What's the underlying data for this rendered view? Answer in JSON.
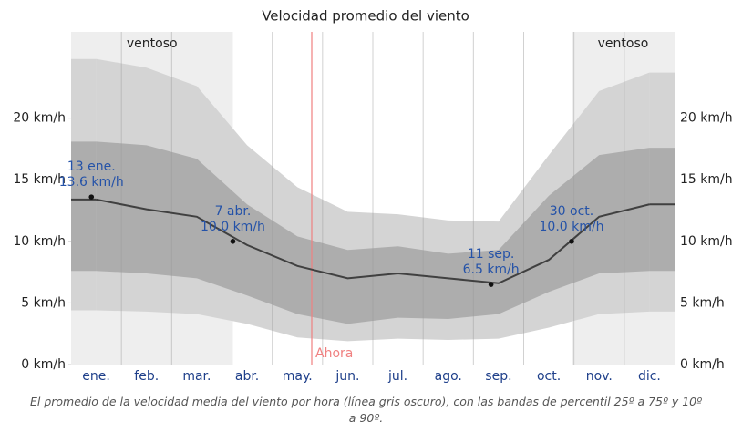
{
  "chart_data": {
    "type": "band-line",
    "title": "Velocidad promedio del viento",
    "categories": [
      "ene.",
      "feb.",
      "mar.",
      "abr.",
      "may.",
      "jun.",
      "jul.",
      "ago.",
      "sep.",
      "oct.",
      "nov.",
      "dic."
    ],
    "bands": [
      {
        "color": "#d4d4d4",
        "lower": [
          4.4,
          4.3,
          4.1,
          3.3,
          2.2,
          1.9,
          2.1,
          2.0,
          2.1,
          3.0,
          4.1,
          4.3
        ],
        "upper": [
          24.8,
          24.1,
          22.6,
          17.8,
          14.4,
          12.4,
          12.2,
          11.7,
          11.6,
          17.0,
          22.2,
          23.7
        ]
      },
      {
        "color": "#adadad",
        "lower": [
          7.6,
          7.4,
          7.0,
          5.6,
          4.1,
          3.3,
          3.8,
          3.7,
          4.1,
          5.9,
          7.4,
          7.6
        ],
        "upper": [
          18.1,
          17.8,
          16.7,
          13.0,
          10.4,
          9.3,
          9.6,
          9.0,
          9.3,
          13.7,
          17.0,
          17.6
        ]
      }
    ],
    "mean": {
      "color": "#404040",
      "values": [
        13.4,
        12.6,
        12.0,
        9.7,
        8.0,
        7.0,
        7.4,
        7.0,
        6.6,
        8.5,
        12.0,
        13.0
      ]
    },
    "annotations": [
      {
        "date": "13 ene.",
        "value": 13.6,
        "label": "13.6 km/h"
      },
      {
        "date": "7 abr.",
        "value": 10.0,
        "label": "10.0 km/h"
      },
      {
        "date": "11 sep.",
        "value": 6.5,
        "label": "6.5 km/h"
      },
      {
        "date": "30 oct.",
        "value": 10.0,
        "label": "10.0 km/h"
      }
    ],
    "windy_periods": [
      {
        "label": "ventoso"
      },
      {
        "label": "ventoso"
      }
    ],
    "now_label": "Ahora",
    "ylim": [
      0,
      27
    ],
    "yticks": [
      {
        "value": 0,
        "label": "0 km/h"
      },
      {
        "value": 5,
        "label": "5 km/h"
      },
      {
        "value": 10,
        "label": "10 km/h"
      },
      {
        "value": 15,
        "label": "15 km/h"
      },
      {
        "value": 20,
        "label": "20 km/h"
      }
    ],
    "caption": "El promedio de la velocidad media del viento por hora (línea gris oscuro), con las bandas de percentil 25º a 75º y 10º a 90º."
  }
}
